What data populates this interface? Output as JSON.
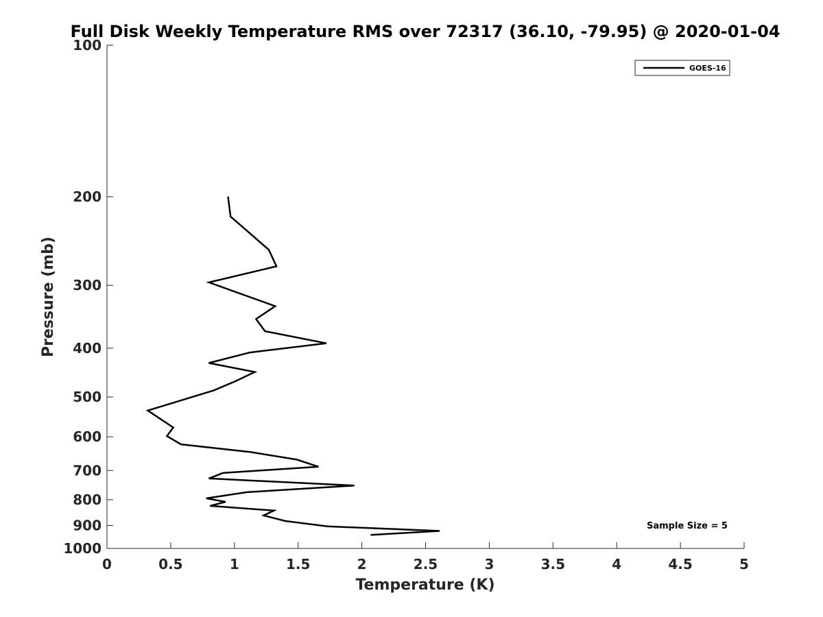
{
  "chart_data": {
    "type": "line",
    "title": "Full Disk Weekly Temperature RMS over 72317 (36.10, -79.95) @ 2020-01-04",
    "xlabel": "Temperature (K)",
    "ylabel": "Pressure (mb)",
    "xlim": [
      0,
      5
    ],
    "ylim": [
      100,
      1000
    ],
    "y_scale": "log",
    "y_reversed": true,
    "grid": false,
    "legend_position": "top-right",
    "x_ticks": [
      "0",
      "0.5",
      "1",
      "1.5",
      "2",
      "2.5",
      "3",
      "3.5",
      "4",
      "4.5",
      "5"
    ],
    "x_tick_values": [
      0,
      0.5,
      1,
      1.5,
      2,
      2.5,
      3,
      3.5,
      4,
      4.5,
      5
    ],
    "y_ticks": [
      "100",
      "200",
      "300",
      "400",
      "500",
      "600",
      "700",
      "800",
      "900",
      "1000"
    ],
    "y_tick_values": [
      100,
      200,
      300,
      400,
      500,
      600,
      700,
      800,
      900,
      1000
    ],
    "annotation": "Sample Size = 5",
    "series": [
      {
        "name": "GOES-16",
        "color": "#000000",
        "points": [
          {
            "x": 0.95,
            "y": 200
          },
          {
            "x": 0.97,
            "y": 219
          },
          {
            "x": 1.27,
            "y": 255
          },
          {
            "x": 1.33,
            "y": 275
          },
          {
            "x": 0.8,
            "y": 296
          },
          {
            "x": 1.32,
            "y": 330
          },
          {
            "x": 1.17,
            "y": 350
          },
          {
            "x": 1.24,
            "y": 370
          },
          {
            "x": 1.72,
            "y": 391
          },
          {
            "x": 1.12,
            "y": 408
          },
          {
            "x": 0.8,
            "y": 428
          },
          {
            "x": 1.16,
            "y": 446
          },
          {
            "x": 1.01,
            "y": 465
          },
          {
            "x": 0.84,
            "y": 485
          },
          {
            "x": 0.57,
            "y": 509
          },
          {
            "x": 0.32,
            "y": 532
          },
          {
            "x": 0.42,
            "y": 553
          },
          {
            "x": 0.52,
            "y": 575
          },
          {
            "x": 0.47,
            "y": 598
          },
          {
            "x": 0.58,
            "y": 621
          },
          {
            "x": 1.12,
            "y": 643
          },
          {
            "x": 1.49,
            "y": 666
          },
          {
            "x": 1.66,
            "y": 688
          },
          {
            "x": 0.91,
            "y": 708
          },
          {
            "x": 0.8,
            "y": 726
          },
          {
            "x": 1.94,
            "y": 750
          },
          {
            "x": 1.1,
            "y": 773
          },
          {
            "x": 0.78,
            "y": 795
          },
          {
            "x": 0.93,
            "y": 808
          },
          {
            "x": 0.81,
            "y": 823
          },
          {
            "x": 1.31,
            "y": 841
          },
          {
            "x": 1.23,
            "y": 860
          },
          {
            "x": 1.4,
            "y": 882
          },
          {
            "x": 1.73,
            "y": 904
          },
          {
            "x": 2.61,
            "y": 923
          },
          {
            "x": 2.07,
            "y": 940
          }
        ]
      }
    ]
  }
}
